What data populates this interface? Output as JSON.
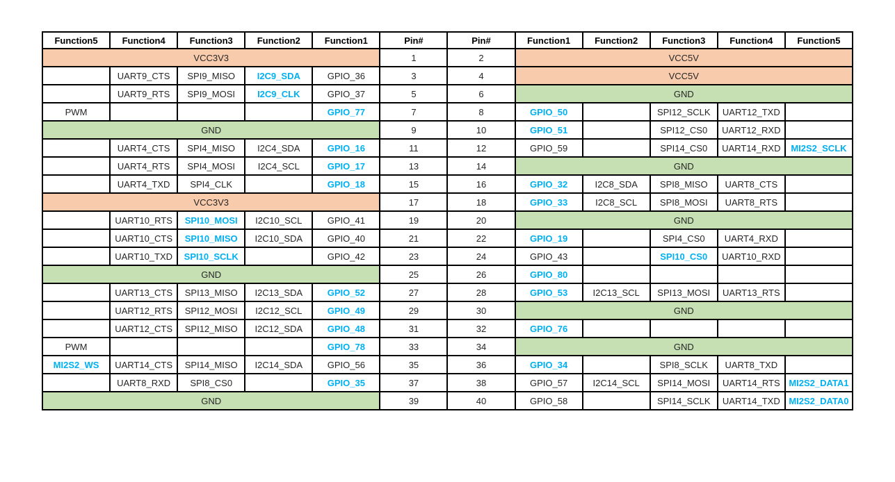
{
  "colors": {
    "power_fill": "#F8CBAD",
    "ground_fill": "#C6E0B4",
    "highlight_text": "#00B0F0",
    "grid_border": "#000000",
    "cell_text": "#262626"
  },
  "table": {
    "headers": [
      "Function5",
      "Function4",
      "Function3",
      "Function2",
      "Function1",
      "Pin#",
      "Pin#",
      "Function1",
      "Function2",
      "Function3",
      "Function4",
      "Function5"
    ],
    "rows": [
      {
        "pins": [
          "1",
          "2"
        ],
        "left": {
          "span": "VCC3V3",
          "kind": "power"
        },
        "right": {
          "span": "VCC5V",
          "kind": "power"
        }
      },
      {
        "pins": [
          "3",
          "4"
        ],
        "left": {
          "cells": [
            {
              "t": ""
            },
            {
              "t": "UART9_CTS"
            },
            {
              "t": "SPI9_MISO"
            },
            {
              "t": "I2C9_SDA",
              "hl": true
            },
            {
              "t": "GPIO_36"
            }
          ]
        },
        "right": {
          "span": "VCC5V",
          "kind": "power"
        }
      },
      {
        "pins": [
          "5",
          "6"
        ],
        "left": {
          "cells": [
            {
              "t": ""
            },
            {
              "t": "UART9_RTS"
            },
            {
              "t": "SPI9_MOSI"
            },
            {
              "t": "I2C9_CLK",
              "hl": true
            },
            {
              "t": "GPIO_37"
            }
          ]
        },
        "right": {
          "span": "GND",
          "kind": "ground"
        }
      },
      {
        "pins": [
          "7",
          "8"
        ],
        "left": {
          "cells": [
            {
              "t": "PWM"
            },
            {
              "t": ""
            },
            {
              "t": ""
            },
            {
              "t": ""
            },
            {
              "t": "GPIO_77",
              "hl": true
            }
          ]
        },
        "right": {
          "cells": [
            {
              "t": "GPIO_50",
              "hl": true
            },
            {
              "t": ""
            },
            {
              "t": "SPI12_SCLK"
            },
            {
              "t": "UART12_TXD"
            },
            {
              "t": ""
            }
          ]
        }
      },
      {
        "pins": [
          "9",
          "10"
        ],
        "left": {
          "span": "GND",
          "kind": "ground"
        },
        "right": {
          "cells": [
            {
              "t": "GPIO_51",
              "hl": true
            },
            {
              "t": ""
            },
            {
              "t": "SPI12_CS0"
            },
            {
              "t": "UART12_RXD"
            },
            {
              "t": ""
            }
          ]
        }
      },
      {
        "pins": [
          "11",
          "12"
        ],
        "left": {
          "cells": [
            {
              "t": ""
            },
            {
              "t": "UART4_CTS"
            },
            {
              "t": "SPI4_MISO"
            },
            {
              "t": "I2C4_SDA"
            },
            {
              "t": "GPIO_16",
              "hl": true
            }
          ]
        },
        "right": {
          "cells": [
            {
              "t": "GPIO_59"
            },
            {
              "t": ""
            },
            {
              "t": "SPI14_CS0"
            },
            {
              "t": "UART14_RXD"
            },
            {
              "t": "MI2S2_SCLK",
              "hl": true
            }
          ]
        }
      },
      {
        "pins": [
          "13",
          "14"
        ],
        "left": {
          "cells": [
            {
              "t": ""
            },
            {
              "t": "UART4_RTS"
            },
            {
              "t": "SPI4_MOSI"
            },
            {
              "t": "I2C4_SCL"
            },
            {
              "t": "GPIO_17",
              "hl": true
            }
          ]
        },
        "right": {
          "span": "GND",
          "kind": "ground"
        }
      },
      {
        "pins": [
          "15",
          "16"
        ],
        "left": {
          "cells": [
            {
              "t": ""
            },
            {
              "t": "UART4_TXD"
            },
            {
              "t": "SPI4_CLK"
            },
            {
              "t": ""
            },
            {
              "t": "GPIO_18",
              "hl": true
            }
          ]
        },
        "right": {
          "cells": [
            {
              "t": "GPIO_32",
              "hl": true
            },
            {
              "t": "I2C8_SDA"
            },
            {
              "t": "SPI8_MISO"
            },
            {
              "t": "UART8_CTS"
            },
            {
              "t": ""
            }
          ]
        }
      },
      {
        "pins": [
          "17",
          "18"
        ],
        "left": {
          "span": "VCC3V3",
          "kind": "power"
        },
        "right": {
          "cells": [
            {
              "t": "GPIO_33",
              "hl": true
            },
            {
              "t": "I2C8_SCL"
            },
            {
              "t": "SPI8_MOSI"
            },
            {
              "t": "UART8_RTS"
            },
            {
              "t": ""
            }
          ]
        }
      },
      {
        "pins": [
          "19",
          "20"
        ],
        "left": {
          "cells": [
            {
              "t": ""
            },
            {
              "t": "UART10_RTS"
            },
            {
              "t": "SPI10_MOSI",
              "hl": true
            },
            {
              "t": "I2C10_SCL"
            },
            {
              "t": "GPIO_41"
            }
          ]
        },
        "right": {
          "span": "GND",
          "kind": "ground"
        }
      },
      {
        "pins": [
          "21",
          "22"
        ],
        "left": {
          "cells": [
            {
              "t": ""
            },
            {
              "t": "UART10_CTS"
            },
            {
              "t": "SPI10_MISO",
              "hl": true
            },
            {
              "t": "I2C10_SDA"
            },
            {
              "t": "GPIO_40"
            }
          ]
        },
        "right": {
          "cells": [
            {
              "t": "GPIO_19",
              "hl": true
            },
            {
              "t": ""
            },
            {
              "t": "SPI4_CS0"
            },
            {
              "t": "UART4_RXD"
            },
            {
              "t": ""
            }
          ]
        }
      },
      {
        "pins": [
          "23",
          "24"
        ],
        "left": {
          "cells": [
            {
              "t": ""
            },
            {
              "t": "UART10_TXD"
            },
            {
              "t": "SPI10_SCLK",
              "hl": true
            },
            {
              "t": ""
            },
            {
              "t": "GPIO_42"
            }
          ]
        },
        "right": {
          "cells": [
            {
              "t": "GPIO_43"
            },
            {
              "t": ""
            },
            {
              "t": "SPI10_CS0",
              "hl": true
            },
            {
              "t": "UART10_RXD"
            },
            {
              "t": ""
            }
          ]
        }
      },
      {
        "pins": [
          "25",
          "26"
        ],
        "left": {
          "span": "GND",
          "kind": "ground"
        },
        "right": {
          "cells": [
            {
              "t": "GPIO_80",
              "hl": true
            },
            {
              "t": ""
            },
            {
              "t": ""
            },
            {
              "t": ""
            },
            {
              "t": ""
            }
          ]
        }
      },
      {
        "pins": [
          "27",
          "28"
        ],
        "left": {
          "cells": [
            {
              "t": ""
            },
            {
              "t": "UART13_CTS"
            },
            {
              "t": "SPI13_MISO"
            },
            {
              "t": "I2C13_SDA"
            },
            {
              "t": "GPIO_52",
              "hl": true
            }
          ]
        },
        "right": {
          "cells": [
            {
              "t": "GPIO_53",
              "hl": true
            },
            {
              "t": "I2C13_SCL"
            },
            {
              "t": "SPI13_MOSI"
            },
            {
              "t": "UART13_RTS"
            },
            {
              "t": ""
            }
          ]
        }
      },
      {
        "pins": [
          "29",
          "30"
        ],
        "left": {
          "cells": [
            {
              "t": ""
            },
            {
              "t": "UART12_RTS"
            },
            {
              "t": "SPI12_MOSI"
            },
            {
              "t": "I2C12_SCL"
            },
            {
              "t": "GPIO_49",
              "hl": true
            }
          ]
        },
        "right": {
          "span": "GND",
          "kind": "ground"
        }
      },
      {
        "pins": [
          "31",
          "32"
        ],
        "left": {
          "cells": [
            {
              "t": ""
            },
            {
              "t": "UART12_CTS"
            },
            {
              "t": "SPI12_MISO"
            },
            {
              "t": "I2C12_SDA"
            },
            {
              "t": "GPIO_48",
              "hl": true
            }
          ]
        },
        "right": {
          "cells": [
            {
              "t": "GPIO_76",
              "hl": true
            },
            {
              "t": ""
            },
            {
              "t": ""
            },
            {
              "t": ""
            },
            {
              "t": ""
            }
          ]
        }
      },
      {
        "pins": [
          "33",
          "34"
        ],
        "left": {
          "cells": [
            {
              "t": "PWM"
            },
            {
              "t": ""
            },
            {
              "t": ""
            },
            {
              "t": ""
            },
            {
              "t": "GPIO_78",
              "hl": true
            }
          ]
        },
        "right": {
          "span": "GND",
          "kind": "ground"
        }
      },
      {
        "pins": [
          "35",
          "36"
        ],
        "left": {
          "cells": [
            {
              "t": "MI2S2_WS",
              "hl": true
            },
            {
              "t": "UART14_CTS"
            },
            {
              "t": "SPI14_MISO"
            },
            {
              "t": "I2C14_SDA"
            },
            {
              "t": "GPIO_56"
            }
          ]
        },
        "right": {
          "cells": [
            {
              "t": "GPIO_34",
              "hl": true
            },
            {
              "t": ""
            },
            {
              "t": "SPI8_SCLK"
            },
            {
              "t": "UART8_TXD"
            },
            {
              "t": ""
            }
          ]
        }
      },
      {
        "pins": [
          "37",
          "38"
        ],
        "left": {
          "cells": [
            {
              "t": ""
            },
            {
              "t": "UART8_RXD"
            },
            {
              "t": "SPI8_CS0"
            },
            {
              "t": ""
            },
            {
              "t": "GPIO_35",
              "hl": true
            }
          ]
        },
        "right": {
          "cells": [
            {
              "t": "GPIO_57"
            },
            {
              "t": "I2C14_SCL"
            },
            {
              "t": "SPI14_MOSI"
            },
            {
              "t": "UART14_RTS"
            },
            {
              "t": "MI2S2_DATA1",
              "hl": true
            }
          ]
        }
      },
      {
        "pins": [
          "39",
          "40"
        ],
        "left": {
          "span": "GND",
          "kind": "ground"
        },
        "right": {
          "cells": [
            {
              "t": "GPIO_58"
            },
            {
              "t": ""
            },
            {
              "t": "SPI14_SCLK"
            },
            {
              "t": "UART14_TXD"
            },
            {
              "t": "MI2S2_DATA0",
              "hl": true
            }
          ]
        }
      }
    ]
  }
}
